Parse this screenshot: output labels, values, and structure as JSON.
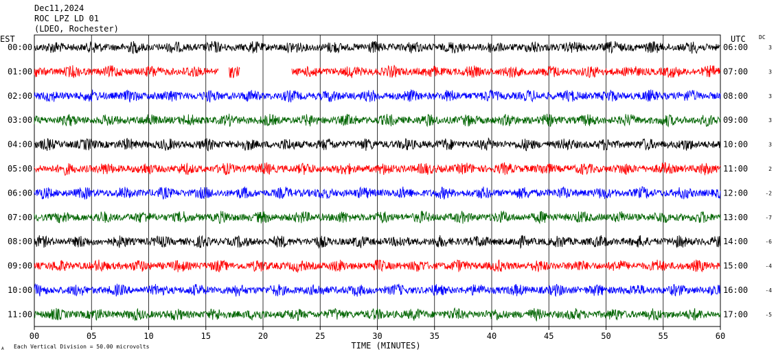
{
  "header": {
    "date": "Dec11,2024",
    "station": "ROC LPZ LD 01",
    "network": "(LDEO, Rochester)"
  },
  "labels": {
    "left_tz": "EST",
    "right_tz": "UTC",
    "dc": "DC",
    "xlabel": "TIME (MINUTES)",
    "footnote": "Each Vertical Division =   50.00 microvolts",
    "corner_mark": "A"
  },
  "chart_data": {
    "type": "line",
    "title": "",
    "xlabel": "TIME (MINUTES)",
    "ylabel": "",
    "xlim": [
      0,
      60
    ],
    "grid": true,
    "x_ticks": [
      "00",
      "05",
      "10",
      "15",
      "20",
      "25",
      "30",
      "35",
      "40",
      "45",
      "50",
      "55",
      "60"
    ],
    "colors": [
      "#000000",
      "#ff0000",
      "#0000ff",
      "#006400"
    ],
    "rows": [
      {
        "est": "00:00",
        "utc": "06:00",
        "dc": "3",
        "color": "#000000"
      },
      {
        "est": "01:00",
        "utc": "07:00",
        "dc": "3",
        "color": "#ff0000",
        "gaps": [
          [
            16.1,
            17.0
          ],
          [
            18.0,
            22.5
          ]
        ]
      },
      {
        "est": "02:00",
        "utc": "08:00",
        "dc": "3",
        "color": "#0000ff"
      },
      {
        "est": "03:00",
        "utc": "09:00",
        "dc": "3",
        "color": "#006400"
      },
      {
        "est": "04:00",
        "utc": "10:00",
        "dc": "3",
        "color": "#000000"
      },
      {
        "est": "05:00",
        "utc": "11:00",
        "dc": "2",
        "color": "#ff0000"
      },
      {
        "est": "06:00",
        "utc": "12:00",
        "dc": "-2",
        "color": "#0000ff"
      },
      {
        "est": "07:00",
        "utc": "13:00",
        "dc": "-7",
        "color": "#006400"
      },
      {
        "est": "08:00",
        "utc": "14:00",
        "dc": "-6",
        "color": "#000000"
      },
      {
        "est": "09:00",
        "utc": "15:00",
        "dc": "-4",
        "color": "#ff0000"
      },
      {
        "est": "10:00",
        "utc": "16:00",
        "dc": "-4",
        "color": "#0000ff"
      },
      {
        "est": "11:00",
        "utc": "17:00",
        "dc": "-5",
        "color": "#006400"
      }
    ]
  }
}
